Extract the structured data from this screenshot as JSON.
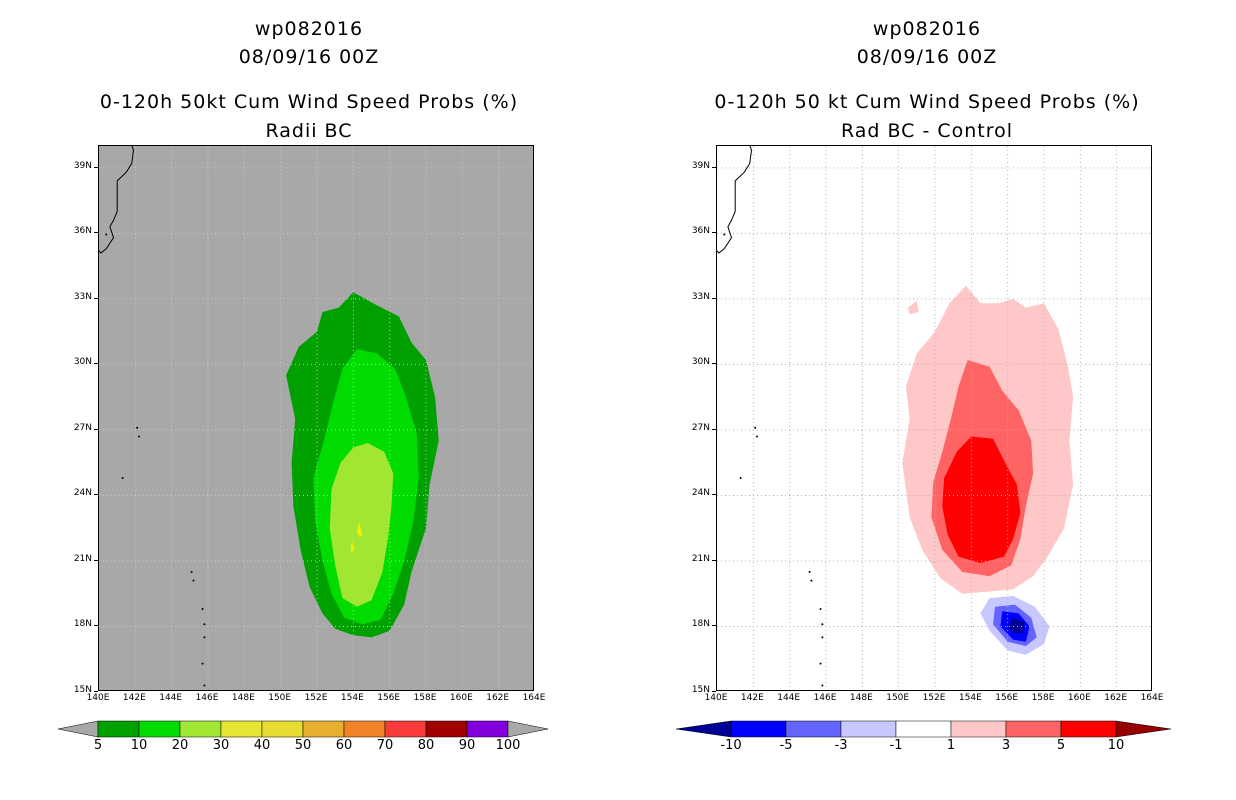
{
  "chart_data": [
    {
      "type": "contour-map",
      "title_lines": [
        "wp082016",
        "08/09/16 00Z",
        "0-120h 50kt Cum Wind Speed Probs (%)",
        "Radii BC"
      ],
      "xlabel": "",
      "ylabel": "",
      "xlim": [
        140,
        164
      ],
      "ylim": [
        15,
        40
      ],
      "x_ticks": [
        "140E",
        "142E",
        "144E",
        "146E",
        "148E",
        "150E",
        "152E",
        "154E",
        "156E",
        "158E",
        "160E",
        "162E",
        "164E"
      ],
      "y_ticks": [
        "15N",
        "18N",
        "21N",
        "24N",
        "27N",
        "30N",
        "33N",
        "36N",
        "39N"
      ],
      "background": "#a8a8a8",
      "grid": true,
      "colorbar": {
        "levels": [
          "5",
          "10",
          "20",
          "30",
          "40",
          "50",
          "60",
          "70",
          "80",
          "90",
          "100"
        ],
        "colors": [
          "#00a000",
          "#00dc00",
          "#a0e632",
          "#e6e632",
          "#e6dc32",
          "#e6af2d",
          "#f08228",
          "#fa3c3c",
          "#a00000",
          "#8200dc"
        ]
      },
      "contours": [
        {
          "level": "5-10",
          "color": "#00a000",
          "points": [
            [
              152.3,
              32.4
            ],
            [
              153.2,
              32.6
            ],
            [
              154.0,
              33.3
            ],
            [
              155.3,
              32.7
            ],
            [
              156.5,
              32.2
            ],
            [
              157.2,
              31.0
            ],
            [
              158.0,
              30.2
            ],
            [
              158.5,
              28.5
            ],
            [
              158.7,
              26.5
            ],
            [
              158.2,
              24.5
            ],
            [
              158.0,
              22.5
            ],
            [
              157.2,
              20.5
            ],
            [
              156.8,
              19.0
            ],
            [
              156.0,
              17.8
            ],
            [
              155.0,
              17.5
            ],
            [
              154.0,
              17.6
            ],
            [
              153.0,
              17.9
            ],
            [
              152.3,
              18.6
            ],
            [
              151.6,
              19.8
            ],
            [
              151.1,
              21.5
            ],
            [
              150.7,
              23.5
            ],
            [
              150.6,
              25.5
            ],
            [
              150.8,
              27.5
            ],
            [
              150.3,
              29.5
            ],
            [
              151.0,
              30.8
            ],
            [
              152.0,
              31.5
            ]
          ]
        },
        {
          "level": "10-20",
          "color": "#00dc00",
          "points": [
            [
              154.2,
              30.7
            ],
            [
              155.3,
              30.5
            ],
            [
              156.3,
              29.8
            ],
            [
              156.9,
              28.5
            ],
            [
              157.5,
              26.8
            ],
            [
              157.6,
              24.8
            ],
            [
              157.3,
              22.8
            ],
            [
              156.8,
              21.0
            ],
            [
              156.2,
              19.5
            ],
            [
              155.5,
              18.3
            ],
            [
              154.5,
              18.1
            ],
            [
              153.5,
              18.4
            ],
            [
              152.8,
              19.5
            ],
            [
              152.3,
              21.0
            ],
            [
              151.9,
              22.8
            ],
            [
              151.8,
              24.8
            ],
            [
              152.4,
              26.6
            ],
            [
              152.9,
              28.3
            ],
            [
              153.4,
              29.8
            ]
          ]
        },
        {
          "level": "20-30",
          "color": "#a0e632",
          "points": [
            [
              154.8,
              26.4
            ],
            [
              155.7,
              26.0
            ],
            [
              156.2,
              25.0
            ],
            [
              156.1,
              23.5
            ],
            [
              155.9,
              22.0
            ],
            [
              155.6,
              20.5
            ],
            [
              155.0,
              19.2
            ],
            [
              154.2,
              18.9
            ],
            [
              153.4,
              19.3
            ],
            [
              153.0,
              20.8
            ],
            [
              152.7,
              22.5
            ],
            [
              152.8,
              24.3
            ],
            [
              153.3,
              25.5
            ],
            [
              154.0,
              26.2
            ]
          ]
        },
        {
          "level": "30-40",
          "color": "#f0f000",
          "points": [
            [
              154.3,
              22.8
            ],
            [
              154.5,
              22.2
            ],
            [
              154.35,
              22.1
            ],
            [
              154.2,
              22.3
            ]
          ]
        },
        {
          "level": "30-40",
          "color": "#f0f000",
          "points": [
            [
              153.95,
              21.9
            ],
            [
              154.05,
              21.5
            ],
            [
              153.9,
              21.4
            ],
            [
              153.85,
              21.7
            ]
          ]
        }
      ]
    },
    {
      "type": "contour-map",
      "title_lines": [
        "wp082016",
        "08/09/16 00Z",
        "0-120h 50 kt Cum Wind Speed Probs (%)",
        "Rad BC - Control"
      ],
      "xlabel": "",
      "ylabel": "",
      "xlim": [
        140,
        164
      ],
      "ylim": [
        15,
        40
      ],
      "x_ticks": [
        "140E",
        "142E",
        "144E",
        "146E",
        "148E",
        "150E",
        "152E",
        "154E",
        "156E",
        "158E",
        "160E",
        "162E",
        "164E"
      ],
      "y_ticks": [
        "15N",
        "18N",
        "21N",
        "24N",
        "27N",
        "30N",
        "33N",
        "36N",
        "39N"
      ],
      "background": "#ffffff",
      "grid": true,
      "colorbar": {
        "levels": [
          "-10",
          "-5",
          "-3",
          "-1",
          "1",
          "3",
          "5",
          "10"
        ],
        "colors": [
          "#000096",
          "#0000ff",
          "#6464ff",
          "#c8c8ff",
          "#ffffff",
          "#ffc8c8",
          "#ff6464",
          "#ff0000",
          "#960000"
        ]
      },
      "contours": [
        {
          "level": "1 to 3",
          "color": "#ffc8c8",
          "points": [
            [
              152.0,
              31.5
            ],
            [
              152.8,
              32.8
            ],
            [
              153.7,
              33.6
            ],
            [
              154.5,
              32.8
            ],
            [
              155.5,
              32.8
            ],
            [
              156.3,
              33.0
            ],
            [
              157.0,
              32.6
            ],
            [
              158.0,
              32.8
            ],
            [
              158.8,
              31.6
            ],
            [
              159.3,
              30.0
            ],
            [
              159.6,
              28.5
            ],
            [
              159.4,
              26.5
            ],
            [
              159.6,
              24.5
            ],
            [
              159.1,
              22.5
            ],
            [
              158.2,
              21.2
            ],
            [
              157.4,
              20.3
            ],
            [
              156.3,
              19.7
            ],
            [
              155.0,
              19.6
            ],
            [
              153.5,
              19.5
            ],
            [
              152.3,
              20.2
            ],
            [
              151.3,
              21.5
            ],
            [
              150.6,
              23.0
            ],
            [
              150.2,
              25.5
            ],
            [
              150.6,
              27.5
            ],
            [
              150.4,
              29.0
            ],
            [
              151.0,
              30.5
            ]
          ]
        },
        {
          "level": "1 to 3",
          "color": "#ffc8c8",
          "points": [
            [
              150.5,
              32.6
            ],
            [
              151.0,
              32.9
            ],
            [
              151.1,
              32.4
            ],
            [
              150.6,
              32.3
            ]
          ]
        },
        {
          "level": "3 to 5",
          "color": "#ff6464",
          "points": [
            [
              153.8,
              30.2
            ],
            [
              155.0,
              29.9
            ],
            [
              155.7,
              28.8
            ],
            [
              156.6,
              27.9
            ],
            [
              157.3,
              26.5
            ],
            [
              157.4,
              25.0
            ],
            [
              157.0,
              23.5
            ],
            [
              156.7,
              22.0
            ],
            [
              156.2,
              20.8
            ],
            [
              155.0,
              20.3
            ],
            [
              153.5,
              20.5
            ],
            [
              152.4,
              21.5
            ],
            [
              151.8,
              23.0
            ],
            [
              151.9,
              24.6
            ],
            [
              152.4,
              26.0
            ],
            [
              152.9,
              27.6
            ],
            [
              153.3,
              29.0
            ]
          ]
        },
        {
          "level": "5 to 10",
          "color": "#ff0000",
          "points": [
            [
              154.0,
              26.7
            ],
            [
              155.2,
              26.6
            ],
            [
              155.8,
              25.6
            ],
            [
              156.5,
              24.5
            ],
            [
              156.7,
              23.2
            ],
            [
              156.3,
              22.0
            ],
            [
              155.8,
              21.2
            ],
            [
              154.5,
              20.9
            ],
            [
              153.3,
              21.2
            ],
            [
              152.7,
              22.2
            ],
            [
              152.4,
              23.5
            ],
            [
              152.5,
              24.8
            ],
            [
              153.2,
              26.0
            ]
          ]
        },
        {
          "level": "-1 to -3",
          "color": "#c8c8ff",
          "points": [
            [
              155.0,
              19.3
            ],
            [
              156.3,
              19.4
            ],
            [
              157.5,
              18.9
            ],
            [
              158.3,
              18.0
            ],
            [
              158.0,
              17.2
            ],
            [
              157.0,
              16.7
            ],
            [
              156.0,
              16.9
            ],
            [
              155.0,
              17.8
            ],
            [
              154.5,
              18.6
            ]
          ]
        },
        {
          "level": "-3 to -5",
          "color": "#6464ff",
          "points": [
            [
              155.3,
              18.9
            ],
            [
              156.4,
              19.0
            ],
            [
              157.3,
              18.4
            ],
            [
              157.6,
              17.5
            ],
            [
              157.0,
              17.1
            ],
            [
              156.0,
              17.3
            ],
            [
              155.2,
              18.1
            ]
          ]
        },
        {
          "level": "-5 to -10",
          "color": "#0000ff",
          "points": [
            [
              155.7,
              18.7
            ],
            [
              156.6,
              18.6
            ],
            [
              157.2,
              18.0
            ],
            [
              157.0,
              17.3
            ],
            [
              156.3,
              17.4
            ],
            [
              155.6,
              18.0
            ]
          ]
        },
        {
          "level": "<-10",
          "color": "#000096",
          "points": [
            [
              156.3,
              18.4
            ],
            [
              156.9,
              18.2
            ],
            [
              156.9,
              17.7
            ],
            [
              156.3,
              17.7
            ],
            [
              156.0,
              18.0
            ]
          ]
        }
      ]
    }
  ],
  "coastline": {
    "japan": [
      [
        141.7,
        40.3
      ],
      [
        141.9,
        39.8
      ],
      [
        141.8,
        39.2
      ],
      [
        141.5,
        38.8
      ],
      [
        141.0,
        38.4
      ],
      [
        141.0,
        37.7
      ],
      [
        141.0,
        37.0
      ],
      [
        140.8,
        36.6
      ],
      [
        140.6,
        36.3
      ],
      [
        140.8,
        35.8
      ],
      [
        140.4,
        35.3
      ],
      [
        140.1,
        35.1
      ],
      [
        140.0,
        35.2
      ]
    ],
    "islands": [
      [
        140.4,
        35.95
      ],
      [
        142.1,
        27.1
      ],
      [
        142.2,
        26.7
      ],
      [
        141.3,
        24.8
      ],
      [
        145.1,
        20.5
      ],
      [
        145.2,
        20.1
      ],
      [
        145.7,
        18.8
      ],
      [
        145.8,
        18.1
      ],
      [
        145.8,
        17.5
      ],
      [
        145.7,
        16.3
      ],
      [
        145.8,
        15.3
      ]
    ]
  }
}
